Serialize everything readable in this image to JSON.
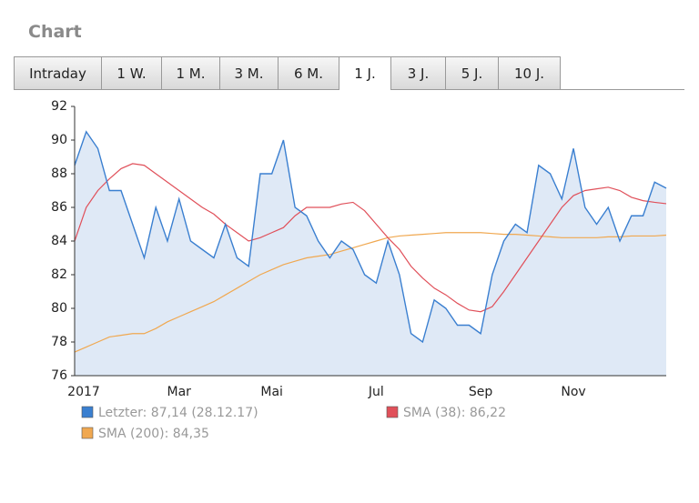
{
  "header": {
    "title": "Chart"
  },
  "tabs": {
    "items": [
      "Intraday",
      "1 W.",
      "1 M.",
      "3 M.",
      "6 M.",
      "1 J.",
      "3 J.",
      "5 J.",
      "10 J."
    ],
    "active": 5
  },
  "chart_data": {
    "type": "line",
    "categories": [
      "2017",
      null,
      null,
      null,
      null,
      null,
      null,
      null,
      null,
      "Mar",
      null,
      null,
      null,
      null,
      null,
      null,
      null,
      "Mai",
      null,
      null,
      null,
      null,
      null,
      null,
      null,
      null,
      "Jul",
      null,
      null,
      null,
      null,
      null,
      null,
      null,
      null,
      "Sep",
      null,
      null,
      null,
      null,
      null,
      null,
      null,
      "Nov",
      null,
      null,
      null,
      null,
      null,
      null,
      null,
      null
    ],
    "series": [
      {
        "name": "Letzter: 87,14 (28.12.17)",
        "color": "#3a7fd0",
        "fill": "#dfe9f6",
        "values": [
          88.5,
          90.5,
          89.5,
          87,
          87,
          85,
          83,
          86,
          84,
          86.5,
          84,
          83.5,
          83,
          85,
          83,
          82.5,
          88,
          88,
          90,
          86,
          85.5,
          84,
          83,
          84,
          83.5,
          82,
          81.5,
          84,
          82,
          78.5,
          78,
          80.5,
          80,
          79,
          79,
          78.5,
          82,
          84,
          85,
          84.5,
          88.5,
          88,
          86.5,
          89.5,
          86,
          85,
          86,
          84,
          85.5,
          85.5,
          87.5,
          87.14
        ]
      },
      {
        "name": "SMA (38): 86,22",
        "color": "#e0505a",
        "values": [
          84,
          86,
          87,
          87.7,
          88.3,
          88.6,
          88.5,
          88,
          87.5,
          87,
          86.5,
          86,
          85.6,
          85,
          84.5,
          84,
          84.2,
          84.5,
          84.8,
          85.5,
          86,
          86,
          86,
          86.2,
          86.3,
          85.8,
          85,
          84.2,
          83.5,
          82.5,
          81.8,
          81.2,
          80.8,
          80.3,
          79.9,
          79.8,
          80.1,
          81,
          82,
          83,
          84,
          85,
          86,
          86.7,
          87,
          87.1,
          87.2,
          87,
          86.6,
          86.4,
          86.3,
          86.22
        ]
      },
      {
        "name": "SMA (200): 84,35",
        "color": "#f0a850",
        "values": [
          77.4,
          77.7,
          78,
          78.3,
          78.4,
          78.5,
          78.5,
          78.8,
          79.2,
          79.5,
          79.8,
          80.1,
          80.4,
          80.8,
          81.2,
          81.6,
          82,
          82.3,
          82.6,
          82.8,
          83,
          83.1,
          83.2,
          83.4,
          83.6,
          83.8,
          84,
          84.2,
          84.3,
          84.35,
          84.4,
          84.45,
          84.5,
          84.5,
          84.5,
          84.5,
          84.45,
          84.4,
          84.4,
          84.35,
          84.3,
          84.25,
          84.2,
          84.2,
          84.2,
          84.2,
          84.25,
          84.25,
          84.3,
          84.3,
          84.3,
          84.35
        ]
      }
    ],
    "ylim": [
      76,
      92
    ],
    "yticks": [
      76,
      78,
      80,
      82,
      84,
      86,
      88,
      90,
      92
    ]
  }
}
